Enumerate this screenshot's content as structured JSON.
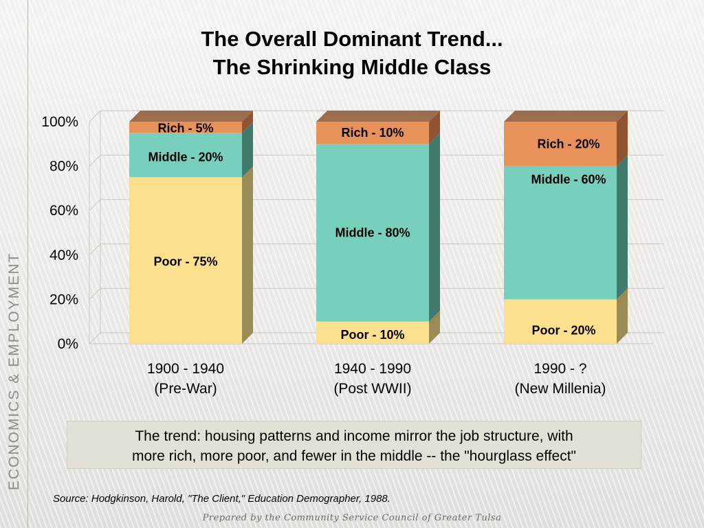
{
  "slide": {
    "title_line1": "The Overall Dominant Trend...",
    "title_line2": "The Shrinking Middle Class",
    "side_label": "ECONOMICS & EMPLOYMENT",
    "note_line1": "The trend:  housing patterns and income mirror the job structure, with",
    "note_line2": "more rich, more poor, and fewer in the middle -- the \"hourglass effect\"",
    "source": "Source:  Hodgkinson, Harold, \"The Client,\" Education Demographer, 1988.",
    "footer": "Prepared by the Community Service Council of Greater Tulsa"
  },
  "colors": {
    "poor": "#fde08e",
    "middle": "#78d0bc",
    "rich": "#e8915a",
    "poor_side": "#9a8a55",
    "middle_side": "#3f7a6c",
    "rich_side": "#8e5530",
    "grid": "#c9c6bf"
  },
  "chart_data": {
    "type": "bar",
    "stacked": true,
    "percent_stacked": true,
    "ylim": [
      0,
      100
    ],
    "yticks": [
      "0%",
      "20%",
      "40%",
      "60%",
      "80%",
      "100%"
    ],
    "ytick_values": [
      0,
      20,
      40,
      60,
      80,
      100
    ],
    "categories": [
      [
        "1900 - 1940",
        "(Pre-War)"
      ],
      [
        "1940 - 1990",
        "(Post WWII)"
      ],
      [
        "1990 - ?",
        "(New Millenia)"
      ]
    ],
    "grid": true,
    "series": [
      {
        "key": "poor",
        "values": [
          75,
          10,
          20
        ],
        "labels": [
          "Poor - 75%",
          "Poor - 10%",
          "Poor - 20%"
        ]
      },
      {
        "key": "middle",
        "values": [
          20,
          80,
          60
        ],
        "labels": [
          "Middle - 20%",
          "Middle - 80%",
          "Middle - 60%"
        ]
      },
      {
        "key": "rich",
        "values": [
          5,
          10,
          20
        ],
        "labels": [
          "Rich - 5%",
          "Rich - 10%",
          "Rich - 20%"
        ]
      }
    ]
  }
}
